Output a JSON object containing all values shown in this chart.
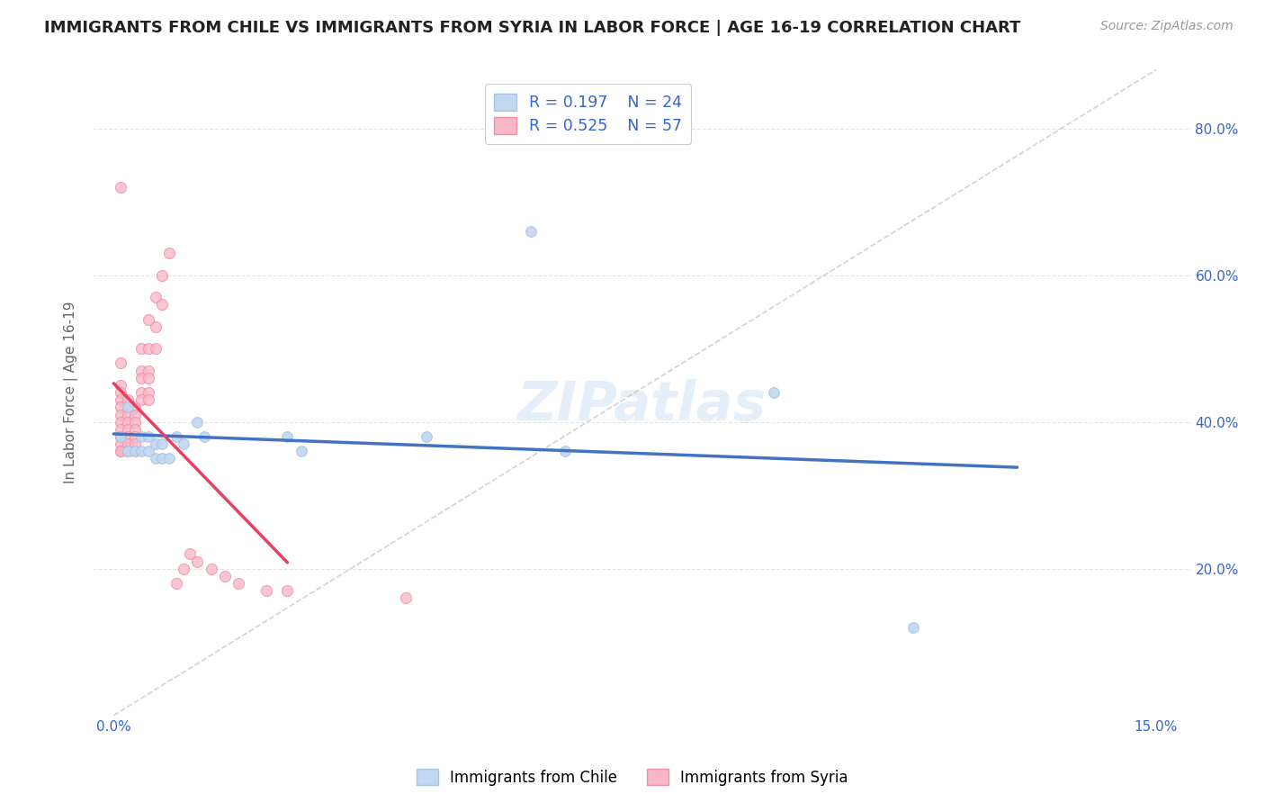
{
  "title": "IMMIGRANTS FROM CHILE VS IMMIGRANTS FROM SYRIA IN LABOR FORCE | AGE 16-19 CORRELATION CHART",
  "source": "Source: ZipAtlas.com",
  "ylabel": "In Labor Force | Age 16-19",
  "xlim": [
    0.0,
    0.15
  ],
  "ylim": [
    0.0,
    0.88
  ],
  "right_yticks": [
    0.2,
    0.4,
    0.6,
    0.8
  ],
  "right_ytick_labels": [
    "20.0%",
    "40.0%",
    "60.0%",
    "80.0%"
  ],
  "watermark": "ZIPatlas",
  "chile_color": "#aac4e2",
  "chile_fill": "#c0d8f0",
  "syria_color": "#f090a8",
  "syria_fill": "#f8b8c8",
  "chile_R": 0.197,
  "chile_N": 24,
  "syria_R": 0.525,
  "syria_N": 57,
  "legend_label_chile": "Immigrants from Chile",
  "legend_label_syria": "Immigrants from Syria",
  "chile_line_color": "#4472c4",
  "syria_line_color": "#e84060",
  "diag_color": "#ccbbbb",
  "grid_color": "#dddddd",
  "bg_color": "#ffffff",
  "text_color_blue": "#3366cc",
  "title_color": "#222222",
  "axis_label_color": "#666666",
  "chile_points": [
    [
      0.001,
      0.38
    ],
    [
      0.002,
      0.42
    ],
    [
      0.002,
      0.36
    ],
    [
      0.003,
      0.36
    ],
    [
      0.004,
      0.38
    ],
    [
      0.004,
      0.36
    ],
    [
      0.005,
      0.38
    ],
    [
      0.005,
      0.36
    ],
    [
      0.006,
      0.35
    ],
    [
      0.006,
      0.37
    ],
    [
      0.007,
      0.35
    ],
    [
      0.007,
      0.37
    ],
    [
      0.008,
      0.35
    ],
    [
      0.009,
      0.38
    ],
    [
      0.01,
      0.37
    ],
    [
      0.012,
      0.4
    ],
    [
      0.013,
      0.38
    ],
    [
      0.025,
      0.38
    ],
    [
      0.027,
      0.36
    ],
    [
      0.045,
      0.38
    ],
    [
      0.06,
      0.66
    ],
    [
      0.065,
      0.36
    ],
    [
      0.095,
      0.44
    ],
    [
      0.115,
      0.12
    ]
  ],
  "syria_points": [
    [
      0.001,
      0.72
    ],
    [
      0.001,
      0.48
    ],
    [
      0.001,
      0.45
    ],
    [
      0.001,
      0.44
    ],
    [
      0.001,
      0.43
    ],
    [
      0.001,
      0.42
    ],
    [
      0.001,
      0.41
    ],
    [
      0.001,
      0.4
    ],
    [
      0.001,
      0.39
    ],
    [
      0.001,
      0.38
    ],
    [
      0.001,
      0.38
    ],
    [
      0.001,
      0.37
    ],
    [
      0.001,
      0.36
    ],
    [
      0.001,
      0.36
    ],
    [
      0.002,
      0.43
    ],
    [
      0.002,
      0.42
    ],
    [
      0.002,
      0.41
    ],
    [
      0.002,
      0.4
    ],
    [
      0.002,
      0.39
    ],
    [
      0.002,
      0.38
    ],
    [
      0.002,
      0.37
    ],
    [
      0.002,
      0.36
    ],
    [
      0.002,
      0.36
    ],
    [
      0.003,
      0.42
    ],
    [
      0.003,
      0.41
    ],
    [
      0.003,
      0.4
    ],
    [
      0.003,
      0.39
    ],
    [
      0.003,
      0.38
    ],
    [
      0.003,
      0.37
    ],
    [
      0.003,
      0.36
    ],
    [
      0.004,
      0.5
    ],
    [
      0.004,
      0.47
    ],
    [
      0.004,
      0.46
    ],
    [
      0.004,
      0.44
    ],
    [
      0.004,
      0.43
    ],
    [
      0.005,
      0.54
    ],
    [
      0.005,
      0.5
    ],
    [
      0.005,
      0.47
    ],
    [
      0.005,
      0.46
    ],
    [
      0.005,
      0.44
    ],
    [
      0.005,
      0.43
    ],
    [
      0.006,
      0.57
    ],
    [
      0.006,
      0.53
    ],
    [
      0.006,
      0.5
    ],
    [
      0.007,
      0.6
    ],
    [
      0.007,
      0.56
    ],
    [
      0.008,
      0.63
    ],
    [
      0.009,
      0.18
    ],
    [
      0.01,
      0.2
    ],
    [
      0.011,
      0.22
    ],
    [
      0.012,
      0.21
    ],
    [
      0.014,
      0.2
    ],
    [
      0.016,
      0.19
    ],
    [
      0.018,
      0.18
    ],
    [
      0.022,
      0.17
    ],
    [
      0.025,
      0.17
    ],
    [
      0.042,
      0.16
    ]
  ]
}
